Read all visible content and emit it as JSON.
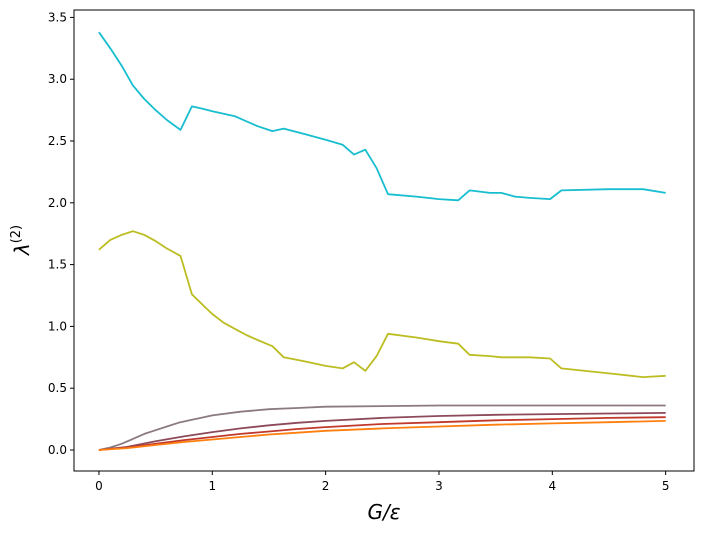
{
  "chart_data": {
    "type": "line",
    "title": "",
    "xlabel": "G/ε",
    "ylabel": "λ",
    "ylabel_sup": "(2)",
    "xlim": [
      -0.22,
      5.25
    ],
    "ylim": [
      -0.17,
      3.56
    ],
    "xticks": [
      0,
      1,
      2,
      3,
      4,
      5
    ],
    "yticks": [
      0.0,
      0.5,
      1.0,
      1.5,
      2.0,
      2.5,
      3.0,
      3.5
    ],
    "xtick_labels": [
      "0",
      "1",
      "2",
      "3",
      "4",
      "5"
    ],
    "ytick_labels": [
      "0.0",
      "0.5",
      "1.0",
      "1.5",
      "2.0",
      "2.5",
      "3.0",
      "3.5"
    ],
    "grid": false,
    "legend": "none",
    "series": [
      {
        "color": "#17becf",
        "points": [
          [
            0.0,
            3.38
          ],
          [
            0.1,
            3.25
          ],
          [
            0.2,
            3.11
          ],
          [
            0.3,
            2.95
          ],
          [
            0.4,
            2.84
          ],
          [
            0.5,
            2.75
          ],
          [
            0.6,
            2.67
          ],
          [
            0.72,
            2.59
          ],
          [
            0.82,
            2.78
          ],
          [
            0.92,
            2.76
          ],
          [
            1.0,
            2.74
          ],
          [
            1.2,
            2.7
          ],
          [
            1.4,
            2.62
          ],
          [
            1.53,
            2.58
          ],
          [
            1.63,
            2.6
          ],
          [
            1.8,
            2.56
          ],
          [
            2.0,
            2.51
          ],
          [
            2.15,
            2.47
          ],
          [
            2.25,
            2.39
          ],
          [
            2.35,
            2.43
          ],
          [
            2.45,
            2.28
          ],
          [
            2.55,
            2.07
          ],
          [
            2.8,
            2.05
          ],
          [
            3.0,
            2.03
          ],
          [
            3.17,
            2.02
          ],
          [
            3.27,
            2.1
          ],
          [
            3.45,
            2.08
          ],
          [
            3.55,
            2.08
          ],
          [
            3.67,
            2.05
          ],
          [
            3.8,
            2.04
          ],
          [
            3.98,
            2.03
          ],
          [
            4.08,
            2.1
          ],
          [
            4.5,
            2.11
          ],
          [
            4.8,
            2.11
          ],
          [
            5.0,
            2.08
          ]
        ]
      },
      {
        "color": "#bcbd22",
        "points": [
          [
            0.0,
            1.62
          ],
          [
            0.1,
            1.7
          ],
          [
            0.2,
            1.74
          ],
          [
            0.3,
            1.77
          ],
          [
            0.4,
            1.74
          ],
          [
            0.5,
            1.69
          ],
          [
            0.6,
            1.63
          ],
          [
            0.72,
            1.57
          ],
          [
            0.82,
            1.26
          ],
          [
            0.92,
            1.17
          ],
          [
            1.0,
            1.1
          ],
          [
            1.1,
            1.03
          ],
          [
            1.2,
            0.98
          ],
          [
            1.3,
            0.93
          ],
          [
            1.4,
            0.89
          ],
          [
            1.53,
            0.84
          ],
          [
            1.63,
            0.75
          ],
          [
            1.8,
            0.72
          ],
          [
            2.0,
            0.68
          ],
          [
            2.15,
            0.66
          ],
          [
            2.25,
            0.71
          ],
          [
            2.35,
            0.64
          ],
          [
            2.45,
            0.76
          ],
          [
            2.55,
            0.94
          ],
          [
            2.8,
            0.91
          ],
          [
            3.0,
            0.88
          ],
          [
            3.17,
            0.86
          ],
          [
            3.27,
            0.77
          ],
          [
            3.45,
            0.76
          ],
          [
            3.55,
            0.75
          ],
          [
            3.67,
            0.75
          ],
          [
            3.8,
            0.75
          ],
          [
            3.98,
            0.74
          ],
          [
            4.08,
            0.66
          ],
          [
            4.5,
            0.62
          ],
          [
            4.8,
            0.59
          ],
          [
            5.0,
            0.6
          ]
        ]
      },
      {
        "color": "#8c7a82",
        "points": [
          [
            0.0,
            0.0
          ],
          [
            0.1,
            0.02
          ],
          [
            0.2,
            0.05
          ],
          [
            0.3,
            0.09
          ],
          [
            0.4,
            0.13
          ],
          [
            0.5,
            0.16
          ],
          [
            0.6,
            0.19
          ],
          [
            0.7,
            0.22
          ],
          [
            0.8,
            0.24
          ],
          [
            0.9,
            0.26
          ],
          [
            1.0,
            0.28
          ],
          [
            1.25,
            0.31
          ],
          [
            1.5,
            0.33
          ],
          [
            1.75,
            0.34
          ],
          [
            2.0,
            0.35
          ],
          [
            2.5,
            0.355
          ],
          [
            3.0,
            0.36
          ],
          [
            3.5,
            0.36
          ],
          [
            4.0,
            0.36
          ],
          [
            4.5,
            0.36
          ],
          [
            5.0,
            0.36
          ]
        ]
      },
      {
        "color": "#8c4a5a",
        "points": [
          [
            0.0,
            0.0
          ],
          [
            0.25,
            0.025
          ],
          [
            0.5,
            0.07
          ],
          [
            0.75,
            0.11
          ],
          [
            1.0,
            0.145
          ],
          [
            1.25,
            0.175
          ],
          [
            1.5,
            0.2
          ],
          [
            1.75,
            0.22
          ],
          [
            2.0,
            0.235
          ],
          [
            2.5,
            0.26
          ],
          [
            3.0,
            0.275
          ],
          [
            3.5,
            0.285
          ],
          [
            4.0,
            0.29
          ],
          [
            4.5,
            0.295
          ],
          [
            5.0,
            0.3
          ]
        ]
      },
      {
        "color": "#c0392b",
        "points": [
          [
            0.0,
            0.0
          ],
          [
            0.25,
            0.02
          ],
          [
            0.5,
            0.05
          ],
          [
            0.75,
            0.08
          ],
          [
            1.0,
            0.105
          ],
          [
            1.25,
            0.13
          ],
          [
            1.5,
            0.15
          ],
          [
            1.75,
            0.17
          ],
          [
            2.0,
            0.185
          ],
          [
            2.5,
            0.21
          ],
          [
            3.0,
            0.225
          ],
          [
            3.5,
            0.24
          ],
          [
            4.0,
            0.25
          ],
          [
            4.5,
            0.26
          ],
          [
            5.0,
            0.265
          ]
        ]
      },
      {
        "color": "#ff7f0e",
        "points": [
          [
            0.0,
            0.0
          ],
          [
            0.25,
            0.015
          ],
          [
            0.5,
            0.04
          ],
          [
            0.75,
            0.065
          ],
          [
            1.0,
            0.085
          ],
          [
            1.25,
            0.105
          ],
          [
            1.5,
            0.125
          ],
          [
            1.75,
            0.14
          ],
          [
            2.0,
            0.155
          ],
          [
            2.5,
            0.175
          ],
          [
            3.0,
            0.19
          ],
          [
            3.5,
            0.205
          ],
          [
            4.0,
            0.215
          ],
          [
            4.5,
            0.225
          ],
          [
            5.0,
            0.235
          ]
        ]
      }
    ]
  }
}
